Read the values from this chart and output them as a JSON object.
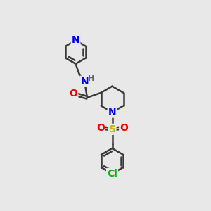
{
  "bg_color": "#e8e8e8",
  "bond_color": "#3a3a3a",
  "bond_width": 1.8,
  "atom_colors": {
    "N": "#0000ee",
    "O": "#ee0000",
    "S": "#bbbb00",
    "Cl": "#00bb00",
    "C": "#3a3a3a",
    "H": "#666666"
  },
  "font_size_atom": 10,
  "font_size_h": 8,
  "font_size_cl": 10
}
